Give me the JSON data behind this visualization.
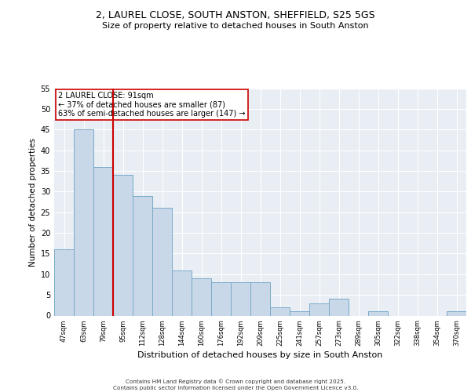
{
  "title1": "2, LAUREL CLOSE, SOUTH ANSTON, SHEFFIELD, S25 5GS",
  "title2": "Size of property relative to detached houses in South Anston",
  "xlabel": "Distribution of detached houses by size in South Anston",
  "ylabel": "Number of detached properties",
  "categories": [
    "47sqm",
    "63sqm",
    "79sqm",
    "95sqm",
    "112sqm",
    "128sqm",
    "144sqm",
    "160sqm",
    "176sqm",
    "192sqm",
    "209sqm",
    "225sqm",
    "241sqm",
    "257sqm",
    "273sqm",
    "289sqm",
    "305sqm",
    "322sqm",
    "338sqm",
    "354sqm",
    "370sqm"
  ],
  "values": [
    16,
    45,
    36,
    34,
    29,
    26,
    11,
    9,
    8,
    8,
    8,
    2,
    1,
    3,
    4,
    0,
    1,
    0,
    0,
    0,
    1
  ],
  "bar_color": "#c8d8e8",
  "bar_edge_color": "#7aaac8",
  "background_color": "#e8eef4",
  "grid_color": "#ffffff",
  "vline_color": "#cc0000",
  "annotation_text": "2 LAUREL CLOSE: 91sqm\n← 37% of detached houses are smaller (87)\n63% of semi-detached houses are larger (147) →",
  "annotation_box_color": "#ffffff",
  "annotation_box_edge": "#cc0000",
  "footer_text": "Contains HM Land Registry data © Crown copyright and database right 2025.\nContains public sector information licensed under the Open Government Licence v3.0.",
  "ylim": [
    0,
    55
  ],
  "yticks": [
    0,
    5,
    10,
    15,
    20,
    25,
    30,
    35,
    40,
    45,
    50,
    55
  ]
}
